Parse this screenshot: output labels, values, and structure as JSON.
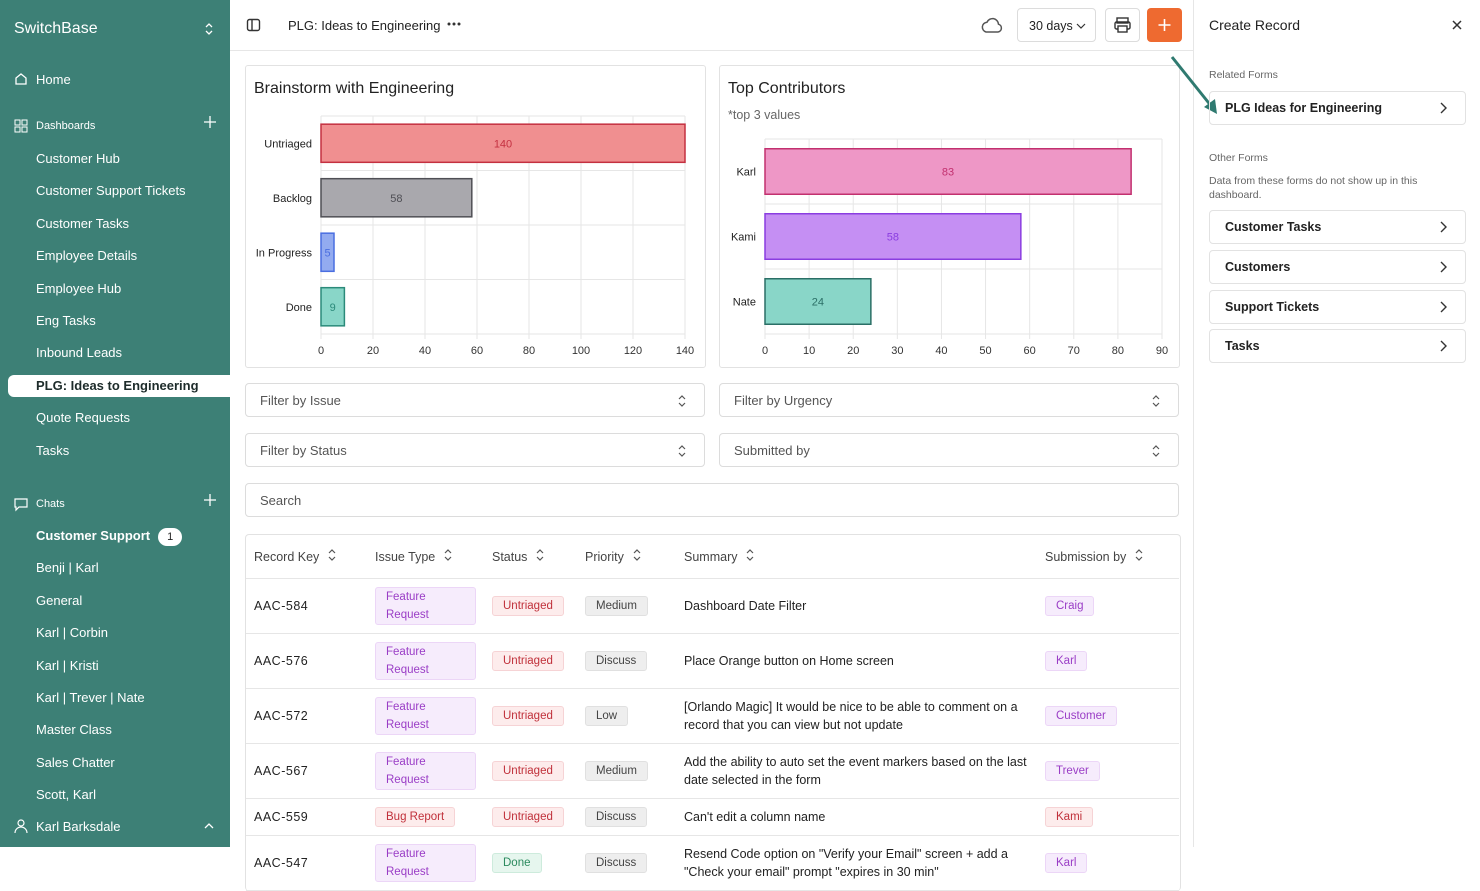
{
  "sidebar": {
    "brand": "SwitchBase",
    "home": "Home",
    "dashboards": {
      "label": "Dashboards",
      "items": [
        "Customer Hub",
        "Customer Support Tickets",
        "Customer Tasks",
        "Employee Details",
        "Employee Hub",
        "Eng Tasks",
        "Inbound Leads",
        "PLG: Ideas to Engineering",
        "Quote Requests",
        "Tasks"
      ]
    },
    "chats": {
      "label": "Chats",
      "items": [
        "Customer Support",
        "Benji | Karl",
        "General",
        "Karl | Corbin",
        "Karl | Kristi",
        "Karl | Trever | Nate",
        "Master Class",
        "Sales Chatter",
        "Scott, Karl"
      ],
      "badge": 1
    },
    "user": "Karl Barksdale"
  },
  "header": {
    "title": "PLG: Ideas to Engineering",
    "range": "30 days"
  },
  "chart_data": [
    {
      "type": "bar",
      "orientation": "horizontal",
      "title": "Brainstorm with Engineering",
      "categories": [
        "Untriaged",
        "Backlog",
        "In Progress",
        "Done"
      ],
      "values": [
        140,
        58,
        5,
        9
      ],
      "colors": [
        "#f08f90",
        "#a9a8ad",
        "#93abf0",
        "#89d6c8"
      ],
      "edge_colors": [
        "#c43040",
        "#4f4f55",
        "#4a6ee0",
        "#2b8a7a"
      ],
      "xlim": [
        0,
        140
      ],
      "xticks": [
        0,
        20,
        40,
        60,
        80,
        100,
        120,
        140
      ],
      "grid": true
    },
    {
      "type": "bar",
      "orientation": "horizontal",
      "title": "Top Contributors",
      "subtitle": "*top 3 values",
      "categories": [
        "Karl",
        "Kami",
        "Nate"
      ],
      "values": [
        83,
        58,
        24
      ],
      "colors": [
        "#ee97c6",
        "#c58ff3",
        "#89d6c8"
      ],
      "edge_colors": [
        "#c2306f",
        "#8a3de0",
        "#2b6f66"
      ],
      "xlim": [
        0,
        90
      ],
      "xticks": [
        0,
        10,
        20,
        30,
        40,
        50,
        60,
        70,
        80,
        90
      ],
      "grid": true
    }
  ],
  "filters": [
    "Filter by Issue",
    "Filter by Urgency",
    "Filter by Status",
    "Submitted by"
  ],
  "search": "Search",
  "table": {
    "columns": [
      "Record Key",
      "Issue Type",
      "Status",
      "Priority",
      "Summary",
      "Submission by"
    ],
    "rows": [
      [
        "AAC-584",
        "Feature Request",
        "Untriaged",
        "Medium",
        "Dashboard Date Filter",
        "Craig"
      ],
      [
        "AAC-576",
        "Feature Request",
        "Untriaged",
        "Discuss",
        "Place Orange button on Home screen",
        "Karl"
      ],
      [
        "AAC-572",
        "Feature Request",
        "Untriaged",
        "Low",
        "[Orlando Magic] It would be nice to be able to comment on a record that you can view but not update",
        "Customer"
      ],
      [
        "AAC-567",
        "Feature Request",
        "Untriaged",
        "Medium",
        "Add the ability to auto set the event markers based on the last date selected in the form",
        "Trever"
      ],
      [
        "AAC-559",
        "Bug Report",
        "Untriaged",
        "Discuss",
        "Can't edit a column name",
        "Kami"
      ],
      [
        "AAC-547",
        "Feature Request",
        "Done",
        "Discuss",
        "Resend Code option on \"Verify your Email\" screen + add a \"Check your email\" prompt \"expires in 30 min\"",
        "Karl"
      ]
    ]
  },
  "panel": {
    "title": "Create Record",
    "related_label": "Related Forms",
    "related": [
      "PLG Ideas for Engineering"
    ],
    "other_label": "Other Forms",
    "other_note": "Data from these forms do not show up in this dashboard.",
    "other": [
      "Customer Tasks",
      "Customers",
      "Support Tickets",
      "Tasks"
    ]
  }
}
